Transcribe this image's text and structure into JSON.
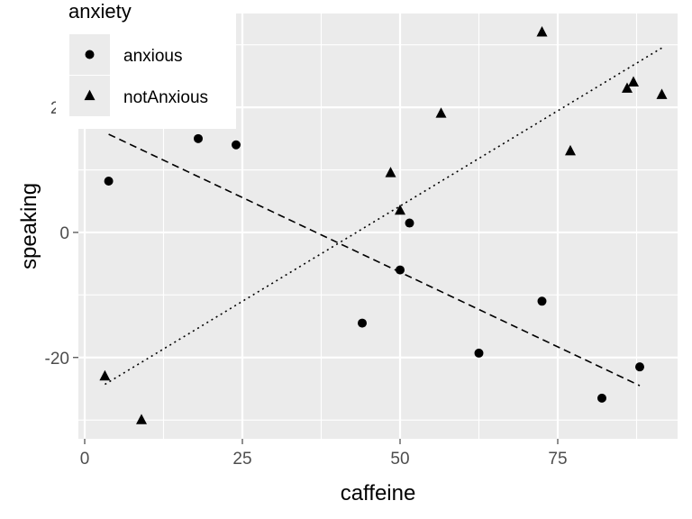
{
  "chart_data": {
    "type": "scatter",
    "xlabel": "caffeine",
    "ylabel": "speaking",
    "xlim": [
      -1,
      94
    ],
    "ylim": [
      -33,
      35
    ],
    "x_ticks": [
      0,
      25,
      50,
      75
    ],
    "x_tick_labels": [
      "0",
      "25",
      "50",
      "75"
    ],
    "y_ticks": [
      -20,
      0,
      20
    ],
    "y_tick_labels": [
      "-20",
      "0",
      "20"
    ],
    "grid": true,
    "legend": {
      "title": "anxiety",
      "position": "top-left",
      "entries": [
        {
          "label": "anxious",
          "marker": "circle",
          "line": "dashed"
        },
        {
          "label": "notAnxious",
          "marker": "triangle",
          "line": "dotted"
        }
      ]
    },
    "series": [
      {
        "name": "anxious",
        "marker": "circle",
        "x": [
          3.8,
          18,
          24,
          44,
          50,
          51.5,
          62.5,
          72.5,
          82,
          88
        ],
        "y": [
          8.2,
          15,
          14,
          -14.5,
          -6,
          1.5,
          -19.3,
          -11,
          -26.5,
          -21.5
        ],
        "trend": {
          "line": "dashed",
          "x": [
            3.8,
            88
          ],
          "y": [
            15.7,
            -24.5
          ]
        }
      },
      {
        "name": "notAnxious",
        "marker": "triangle",
        "x": [
          3.2,
          9,
          48.5,
          50,
          56.5,
          72.5,
          77,
          86,
          87,
          91.5
        ],
        "y": [
          -23,
          -30,
          9.5,
          3.5,
          19,
          32,
          13,
          23,
          24,
          22
        ],
        "trend": {
          "line": "dotted",
          "x": [
            3.2,
            91.5
          ],
          "y": [
            -24.3,
            29.5
          ]
        }
      }
    ]
  },
  "colors": {
    "panel_bg": "#ebebeb",
    "grid_major": "#ffffff",
    "points": "#000000",
    "tick_text": "#4d4d4d",
    "legend_key_bg": "#ebebeb",
    "legend_bg": "#ffffff"
  }
}
